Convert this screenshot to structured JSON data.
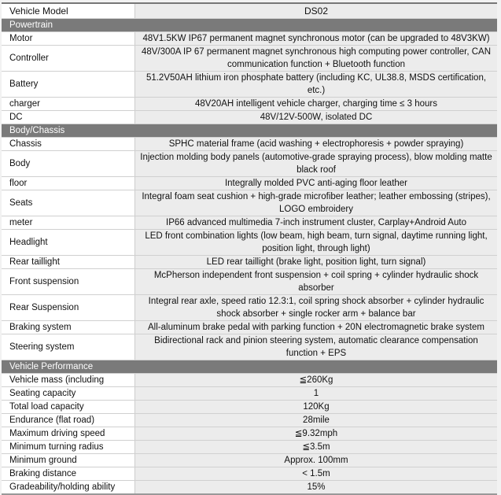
{
  "model": {
    "label": "Vehicle Model",
    "value": "DS02"
  },
  "sections": [
    {
      "title": "Powertrain",
      "rows": [
        {
          "label": "Motor",
          "value": "48V1.5KW IP67 permanent magnet synchronous motor (can be upgraded to 48V3KW)"
        },
        {
          "label": "Controller",
          "value": "48V/300A IP 67 permanent magnet synchronous high computing power controller, CAN communication function + Bluetooth function"
        },
        {
          "label": "Battery",
          "value": "51.2V50AH lithium iron phosphate battery (including KC, UL38.8, MSDS certification, etc.)"
        },
        {
          "label": "charger",
          "value": "48V20AH intelligent vehicle charger, charging time ≤ 3 hours"
        },
        {
          "label": "DC",
          "value": "48V/12V-500W, isolated DC"
        }
      ]
    },
    {
      "title": "Body/Chassis",
      "rows": [
        {
          "label": "Chassis",
          "value": "SPHC material frame (acid washing + electrophoresis + powder spraying)"
        },
        {
          "label": "Body",
          "value": "Injection molding body panels (automotive-grade spraying process), blow molding matte black roof"
        },
        {
          "label": "floor",
          "value": "Integrally molded PVC anti-aging floor leather"
        },
        {
          "label": "Seats",
          "value": "Integral foam seat cushion + high-grade microfiber leather; leather embossing (stripes), LOGO embroidery"
        },
        {
          "label": "meter",
          "value": "IP66 advanced multimedia 7-inch instrument cluster, Carplay+Android Auto"
        },
        {
          "label": "Headlight",
          "value": "LED front combination lights (low beam, high beam, turn signal, daytime running light, position light, through light)"
        },
        {
          "label": "Rear taillight",
          "value": "LED rear taillight (brake light, position light, turn signal)"
        },
        {
          "label": "Front suspension",
          "value": "McPherson independent front suspension + coil spring + cylinder hydraulic shock absorber"
        },
        {
          "label": "Rear Suspension",
          "value": "Integral rear axle, speed ratio 12.3:1, coil spring shock absorber + cylinder hydraulic shock absorber + single rocker arm + balance bar"
        },
        {
          "label": "Braking system",
          "value": "All-aluminum brake pedal with parking function + 20N electromagnetic brake system"
        },
        {
          "label": "Steering system",
          "value": "Bidirectional rack and pinion steering system, automatic clearance compensation function + EPS"
        }
      ]
    },
    {
      "title": "Vehicle Performance",
      "rows": [
        {
          "label": "Vehicle mass (including",
          "value": "≦260Kg"
        },
        {
          "label": "Seating capacity",
          "value": "1"
        },
        {
          "label": "Total load capacity",
          "value": "120Kg"
        },
        {
          "label": "Endurance (flat road)",
          "value": "28mile"
        },
        {
          "label": "Maximum driving speed",
          "value": "≦9.32mph"
        },
        {
          "label": "Minimum turning radius",
          "value": "≦3.5m"
        },
        {
          "label": "Minimum ground",
          "value": "Approx. 100mm"
        },
        {
          "label": "Braking distance",
          "value": "< 1.5m"
        },
        {
          "label": "Gradeability/holding ability",
          "value": "15%"
        }
      ]
    }
  ]
}
